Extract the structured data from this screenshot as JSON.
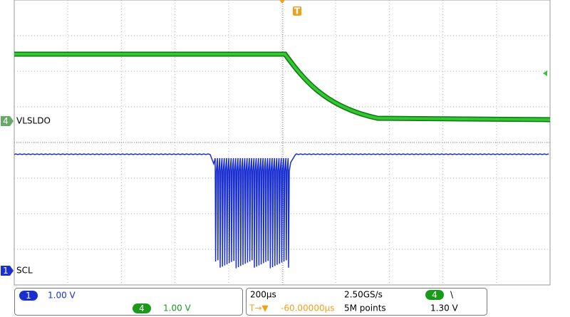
{
  "channels": {
    "ch4_label": "VLSLDO",
    "ch4_badge": "4",
    "ch1_label": "SCL",
    "ch1_badge": "1"
  },
  "trigger_marker": "T",
  "status": {
    "ch1_badge": "1",
    "ch1_scale": "1.00 V",
    "ch4_badge": "4",
    "ch4_scale": "1.00 V",
    "timebase": "200µs",
    "sample_rate": "2.50GS/s",
    "trigger_source_badge": "4",
    "trigger_slope": "\\",
    "trigger_delay_icon": "T→▼",
    "trigger_delay": "-60.00000µs",
    "record_length": "5M points",
    "trigger_level": "1.30 V"
  }
}
